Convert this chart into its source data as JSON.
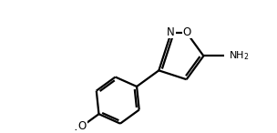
{
  "bg_color": "#ffffff",
  "line_color": "#000000",
  "line_width": 1.6,
  "font_size": 8.5,
  "fig_width": 3.04,
  "fig_height": 1.46,
  "dpi": 100,
  "xlim": [
    0,
    10
  ],
  "ylim": [
    0,
    5
  ]
}
